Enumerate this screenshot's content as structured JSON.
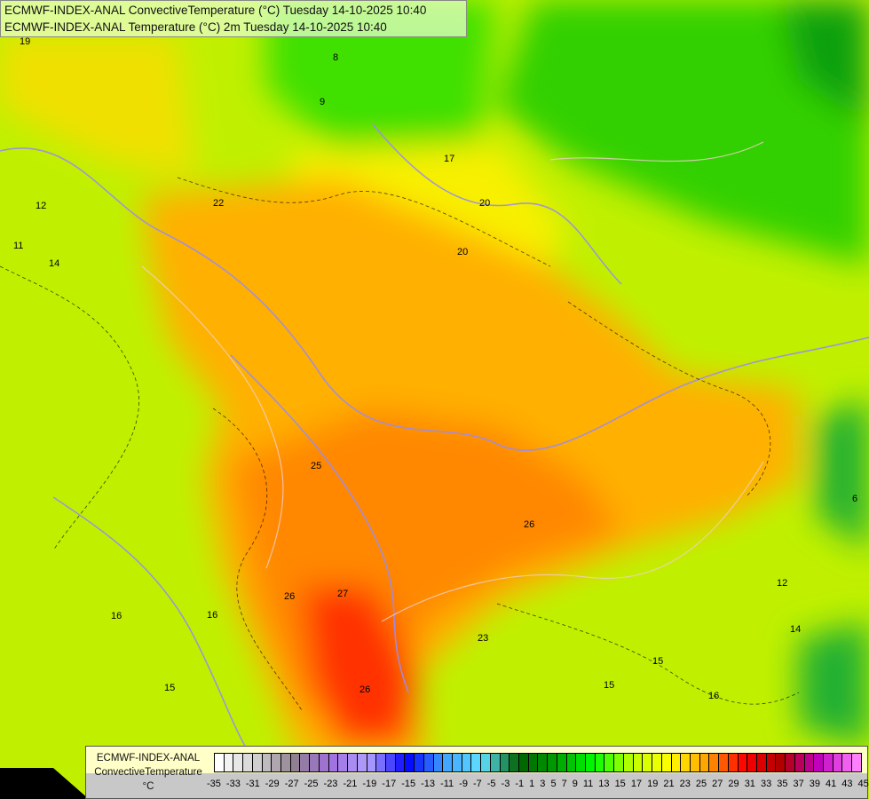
{
  "title": {
    "line1": "ECMWF-INDEX-ANAL ConvectiveTemperature (°C) Tuesday 14-10-2025 10:40",
    "line2": "ECMWF-INDEX-ANAL Temperature (°C) 2m Tuesday 14-10-2025 10:40"
  },
  "legend": {
    "model": "ECMWF-INDEX-ANAL",
    "parameter": "ConvectiveTemperature",
    "unit": "°C",
    "tick_labels": [
      "-35",
      "-33",
      "-31",
      "-29",
      "-27",
      "-25",
      "-23",
      "-21",
      "-19",
      "-17",
      "-15",
      "-13",
      "-11",
      "-9",
      "-7",
      "-5",
      "-3",
      "-1",
      "1",
      "3",
      "5",
      "7",
      "9",
      "11",
      "13",
      "15",
      "17",
      "19",
      "21",
      "23",
      "25",
      "27",
      "29",
      "31",
      "33",
      "35",
      "37",
      "39",
      "41",
      "43",
      "45"
    ],
    "color_stops": [
      "#ffffff",
      "#d0d0d0",
      "#908090",
      "#a070e0",
      "#b0a0ff",
      "#0000ff",
      "#40a0ff",
      "#60e0ff",
      "#006000",
      "#00a000",
      "#00ff00",
      "#c0ff00",
      "#ffff00",
      "#ffa000",
      "#ff0000",
      "#b00000",
      "#c000c0",
      "#ff80ff"
    ]
  },
  "contour_labels": [
    "19",
    "22",
    "20",
    "17",
    "20",
    "25",
    "26",
    "26",
    "27",
    "26",
    "23",
    "16",
    "15",
    "16",
    "15",
    "12",
    "14",
    "15",
    "16",
    "12",
    "14",
    "11",
    "9",
    "8",
    "6"
  ]
}
